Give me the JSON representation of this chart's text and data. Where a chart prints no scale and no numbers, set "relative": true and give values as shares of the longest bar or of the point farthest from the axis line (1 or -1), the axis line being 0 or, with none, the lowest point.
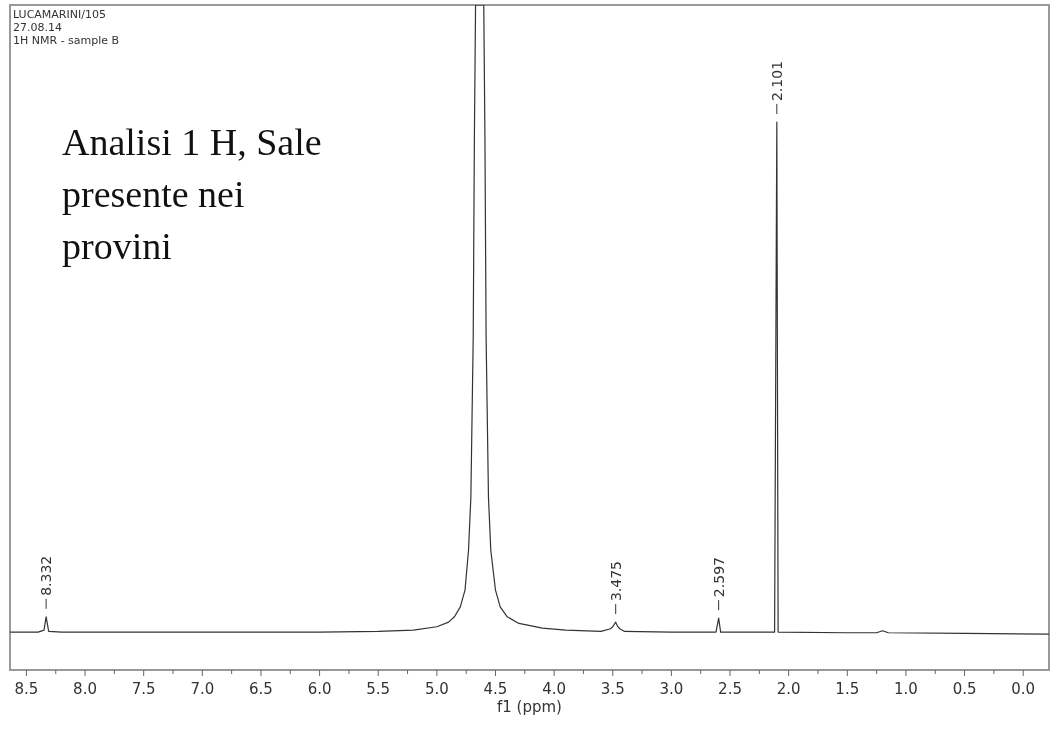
{
  "chart_data": {
    "type": "line",
    "relative": true,
    "xlabel": "f1 (ppm)",
    "xlim": [
      8.64,
      -0.22
    ],
    "xticks": [
      {
        "value": 8.5,
        "label": "8.5"
      },
      {
        "value": 8.25,
        "label": null
      },
      {
        "value": 8.0,
        "label": "8.0"
      },
      {
        "value": 7.75,
        "label": null
      },
      {
        "value": 7.5,
        "label": "7.5"
      },
      {
        "value": 7.25,
        "label": null
      },
      {
        "value": 7.0,
        "label": "7.0"
      },
      {
        "value": 6.75,
        "label": null
      },
      {
        "value": 6.5,
        "label": "6.5"
      },
      {
        "value": 6.25,
        "label": null
      },
      {
        "value": 6.0,
        "label": "6.0"
      },
      {
        "value": 5.75,
        "label": null
      },
      {
        "value": 5.5,
        "label": "5.5"
      },
      {
        "value": 5.25,
        "label": null
      },
      {
        "value": 5.0,
        "label": "5.0"
      },
      {
        "value": 4.75,
        "label": null
      },
      {
        "value": 4.5,
        "label": "4.5"
      },
      {
        "value": 4.25,
        "label": null
      },
      {
        "value": 4.0,
        "label": "4.0"
      },
      {
        "value": 3.75,
        "label": null
      },
      {
        "value": 3.5,
        "label": "3.5"
      },
      {
        "value": 3.25,
        "label": null
      },
      {
        "value": 3.0,
        "label": "3.0"
      },
      {
        "value": 2.75,
        "label": null
      },
      {
        "value": 2.5,
        "label": "2.5"
      },
      {
        "value": 2.25,
        "label": null
      },
      {
        "value": 2.0,
        "label": "2.0"
      },
      {
        "value": 1.75,
        "label": null
      },
      {
        "value": 1.5,
        "label": "1.5"
      },
      {
        "value": 1.25,
        "label": null
      },
      {
        "value": 1.0,
        "label": "1.0"
      },
      {
        "value": 0.75,
        "label": null
      },
      {
        "value": 0.5,
        "label": "0.5"
      },
      {
        "value": 0.25,
        "label": null
      },
      {
        "value": 0.0,
        "label": "0.0"
      }
    ],
    "grid": false,
    "marker": "none",
    "line_style": "solid",
    "series": [
      {
        "color": "#333333",
        "x": [
          8.64,
          8.4,
          8.35,
          8.332,
          8.31,
          8.2,
          7.0,
          6.0,
          5.5,
          5.2,
          5.0,
          4.9,
          4.85,
          4.8,
          4.76,
          4.73,
          4.71,
          4.69,
          4.68,
          4.67,
          4.6,
          4.59,
          4.58,
          4.56,
          4.54,
          4.5,
          4.46,
          4.4,
          4.3,
          4.1,
          3.9,
          3.6,
          3.52,
          3.5,
          3.475,
          3.46,
          3.44,
          3.4,
          3.0,
          2.62,
          2.597,
          2.58,
          2.12,
          2.101,
          2.09,
          1.5,
          1.25,
          1.2,
          1.15,
          0.5,
          -0.22
        ],
        "values": [
          0.057,
          0.057,
          0.06,
          0.08,
          0.058,
          0.057,
          0.057,
          0.057,
          0.058,
          0.06,
          0.065,
          0.072,
          0.08,
          0.095,
          0.12,
          0.18,
          0.26,
          0.5,
          0.8,
          1.0,
          1.0,
          0.8,
          0.5,
          0.26,
          0.18,
          0.12,
          0.095,
          0.08,
          0.07,
          0.063,
          0.06,
          0.058,
          0.062,
          0.065,
          0.072,
          0.066,
          0.062,
          0.058,
          0.057,
          0.057,
          0.078,
          0.057,
          0.057,
          0.824,
          0.057,
          0.056,
          0.056,
          0.059,
          0.056,
          0.055,
          0.054
        ]
      }
    ],
    "annotations": [
      "LUCAMARINI/105",
      "27.08.14",
      "1H NMR - sample B",
      "Analisi 1 H, Sale presente nei provini",
      {
        "text": "8.332",
        "x": 8.332,
        "y": 0.08
      },
      {
        "text": "3.475",
        "x": 3.475,
        "y": 0.072
      },
      {
        "text": "2.597",
        "x": 2.597,
        "y": 0.078
      },
      {
        "text": "2.101",
        "x": 2.101,
        "y": 0.824
      }
    ]
  }
}
